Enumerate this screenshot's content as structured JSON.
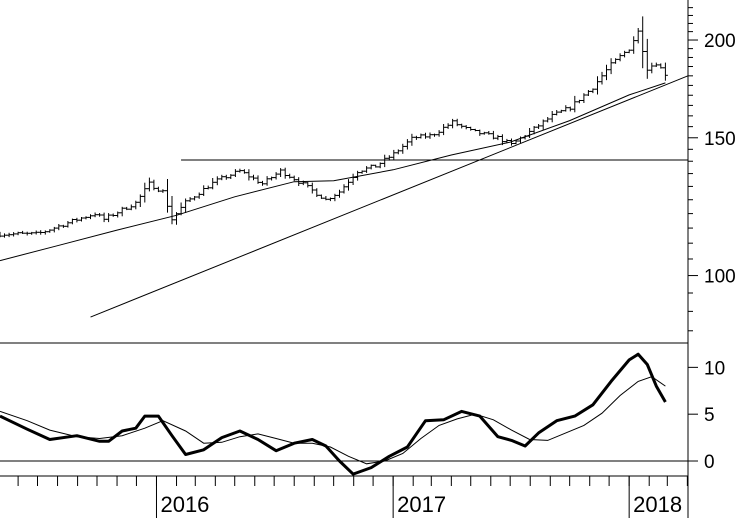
{
  "chart_data": [
    {
      "type": "ohlc",
      "title": "",
      "xlabel": "",
      "ylabel": "",
      "y_scale": "log",
      "ylim": [
        82,
        225
      ],
      "x_range": [
        "2015-05-04",
        "2018-04-02"
      ],
      "yticks": [
        100,
        150,
        200
      ],
      "ytick_labels": [
        "100",
        "150",
        "200"
      ],
      "xtick_labels": [
        "2016",
        "2017",
        "2018"
      ],
      "xtick_dates": [
        "2016-01-01",
        "2017-01-01",
        "2018-01-01"
      ],
      "price_path": {
        "dates": [
          "2015-05-04",
          "2015-07-01",
          "2015-09-01",
          "2015-09-28",
          "2015-10-12",
          "2015-12-01",
          "2015-12-21",
          "2016-01-11",
          "2016-01-25",
          "2016-02-15",
          "2016-04-01",
          "2016-05-09",
          "2016-06-13",
          "2016-07-11",
          "2016-08-01",
          "2016-09-01",
          "2016-09-19",
          "2016-10-10",
          "2016-11-07",
          "2016-12-05",
          "2017-01-02",
          "2017-02-01",
          "2017-03-01",
          "2017-04-03",
          "2017-05-01",
          "2017-06-12",
          "2017-07-03",
          "2017-08-07",
          "2017-09-04",
          "2017-10-02",
          "2017-11-06",
          "2017-12-04",
          "2018-01-01",
          "2018-01-15",
          "2018-01-29",
          "2018-02-12",
          "2018-02-26"
        ],
        "close": [
          113,
          113,
          118,
          120,
          118,
          124,
          131,
          128,
          118,
          124,
          132,
          136,
          131,
          136,
          133,
          128,
          125,
          128,
          136,
          138,
          143,
          150,
          151,
          157,
          153,
          150,
          147,
          154,
          160,
          164,
          174,
          186,
          195,
          205,
          184,
          187,
          181
        ]
      },
      "series": [
        {
          "kind": "moving-average",
          "dates": [
            "2015-05-04",
            "2015-08-01",
            "2015-11-01",
            "2016-02-01",
            "2016-05-01",
            "2016-08-01",
            "2016-10-01",
            "2017-01-01",
            "2017-04-01",
            "2017-07-01",
            "2017-10-01",
            "2018-01-01",
            "2018-02-26"
          ],
          "values": [
            104.5,
            109.2,
            114.3,
            119.4,
            126.1,
            131.8,
            132.2,
            136.5,
            142.6,
            148.1,
            157.8,
            170.2,
            176.3
          ]
        }
      ],
      "lines": [
        {
          "kind": "trendline",
          "x": [
            "2015-09-21",
            "2018-04-02"
          ],
          "y": [
            88.5,
            180.0
          ]
        },
        {
          "kind": "horizontal",
          "x": [
            "2016-02-08",
            "2018-04-02"
          ],
          "y": [
            140.5,
            140.5
          ]
        }
      ]
    },
    {
      "type": "line",
      "title": "",
      "xlabel": "",
      "ylabel": "",
      "ylim": [
        -1.6,
        12.6
      ],
      "yticks": [
        0,
        5,
        10
      ],
      "ytick_labels": [
        "0",
        "5",
        "10"
      ],
      "series": [
        {
          "kind": "oscillator",
          "dates": [
            "2015-05-04",
            "2015-06-15",
            "2015-07-20",
            "2015-08-31",
            "2015-10-05",
            "2015-10-19",
            "2015-11-09",
            "2015-11-30",
            "2015-12-14",
            "2016-01-04",
            "2016-01-25",
            "2016-02-15",
            "2016-03-14",
            "2016-04-11",
            "2016-05-09",
            "2016-06-06",
            "2016-07-04",
            "2016-08-01",
            "2016-08-29",
            "2016-09-19",
            "2016-10-10",
            "2016-10-31",
            "2016-11-28",
            "2016-12-26",
            "2017-01-23",
            "2017-02-20",
            "2017-03-20",
            "2017-04-17",
            "2017-05-15",
            "2017-06-12",
            "2017-07-03",
            "2017-07-24",
            "2017-08-14",
            "2017-09-11",
            "2017-10-09",
            "2017-11-06",
            "2017-12-04",
            "2018-01-01",
            "2018-01-15",
            "2018-01-29",
            "2018-02-12",
            "2018-02-26"
          ],
          "values": [
            4.8,
            3.4,
            2.3,
            2.7,
            2.1,
            2.1,
            3.2,
            3.5,
            4.8,
            4.8,
            2.7,
            0.7,
            1.2,
            2.5,
            3.2,
            2.3,
            1.1,
            1.9,
            2.3,
            1.6,
            0.0,
            -1.4,
            -0.7,
            0.5,
            1.5,
            4.3,
            4.4,
            5.3,
            4.8,
            2.6,
            2.2,
            1.6,
            3.0,
            4.3,
            4.8,
            6.0,
            8.5,
            10.8,
            11.4,
            10.3,
            8.0,
            6.3
          ]
        },
        {
          "kind": "signal",
          "dates": [
            "2015-05-04",
            "2015-06-15",
            "2015-07-20",
            "2015-08-31",
            "2015-10-05",
            "2015-11-09",
            "2015-12-14",
            "2016-01-11",
            "2016-02-15",
            "2016-03-14",
            "2016-04-11",
            "2016-05-09",
            "2016-06-06",
            "2016-07-04",
            "2016-08-01",
            "2016-08-29",
            "2016-09-26",
            "2016-10-24",
            "2016-11-21",
            "2016-12-19",
            "2017-01-16",
            "2017-02-13",
            "2017-03-13",
            "2017-04-10",
            "2017-05-08",
            "2017-06-05",
            "2017-07-03",
            "2017-07-31",
            "2017-08-28",
            "2017-09-25",
            "2017-10-23",
            "2017-11-20",
            "2017-12-18",
            "2018-01-15",
            "2018-02-05",
            "2018-02-26"
          ],
          "values": [
            5.3,
            4.3,
            3.3,
            2.6,
            2.4,
            2.7,
            3.5,
            4.3,
            3.2,
            1.9,
            2.0,
            2.6,
            2.9,
            2.4,
            1.9,
            1.9,
            1.5,
            0.5,
            -0.3,
            0.0,
            0.8,
            2.4,
            3.8,
            4.5,
            5.0,
            4.4,
            3.3,
            2.3,
            2.2,
            3.0,
            3.8,
            5.1,
            7.0,
            8.5,
            9.0,
            8.0
          ]
        }
      ]
    }
  ]
}
